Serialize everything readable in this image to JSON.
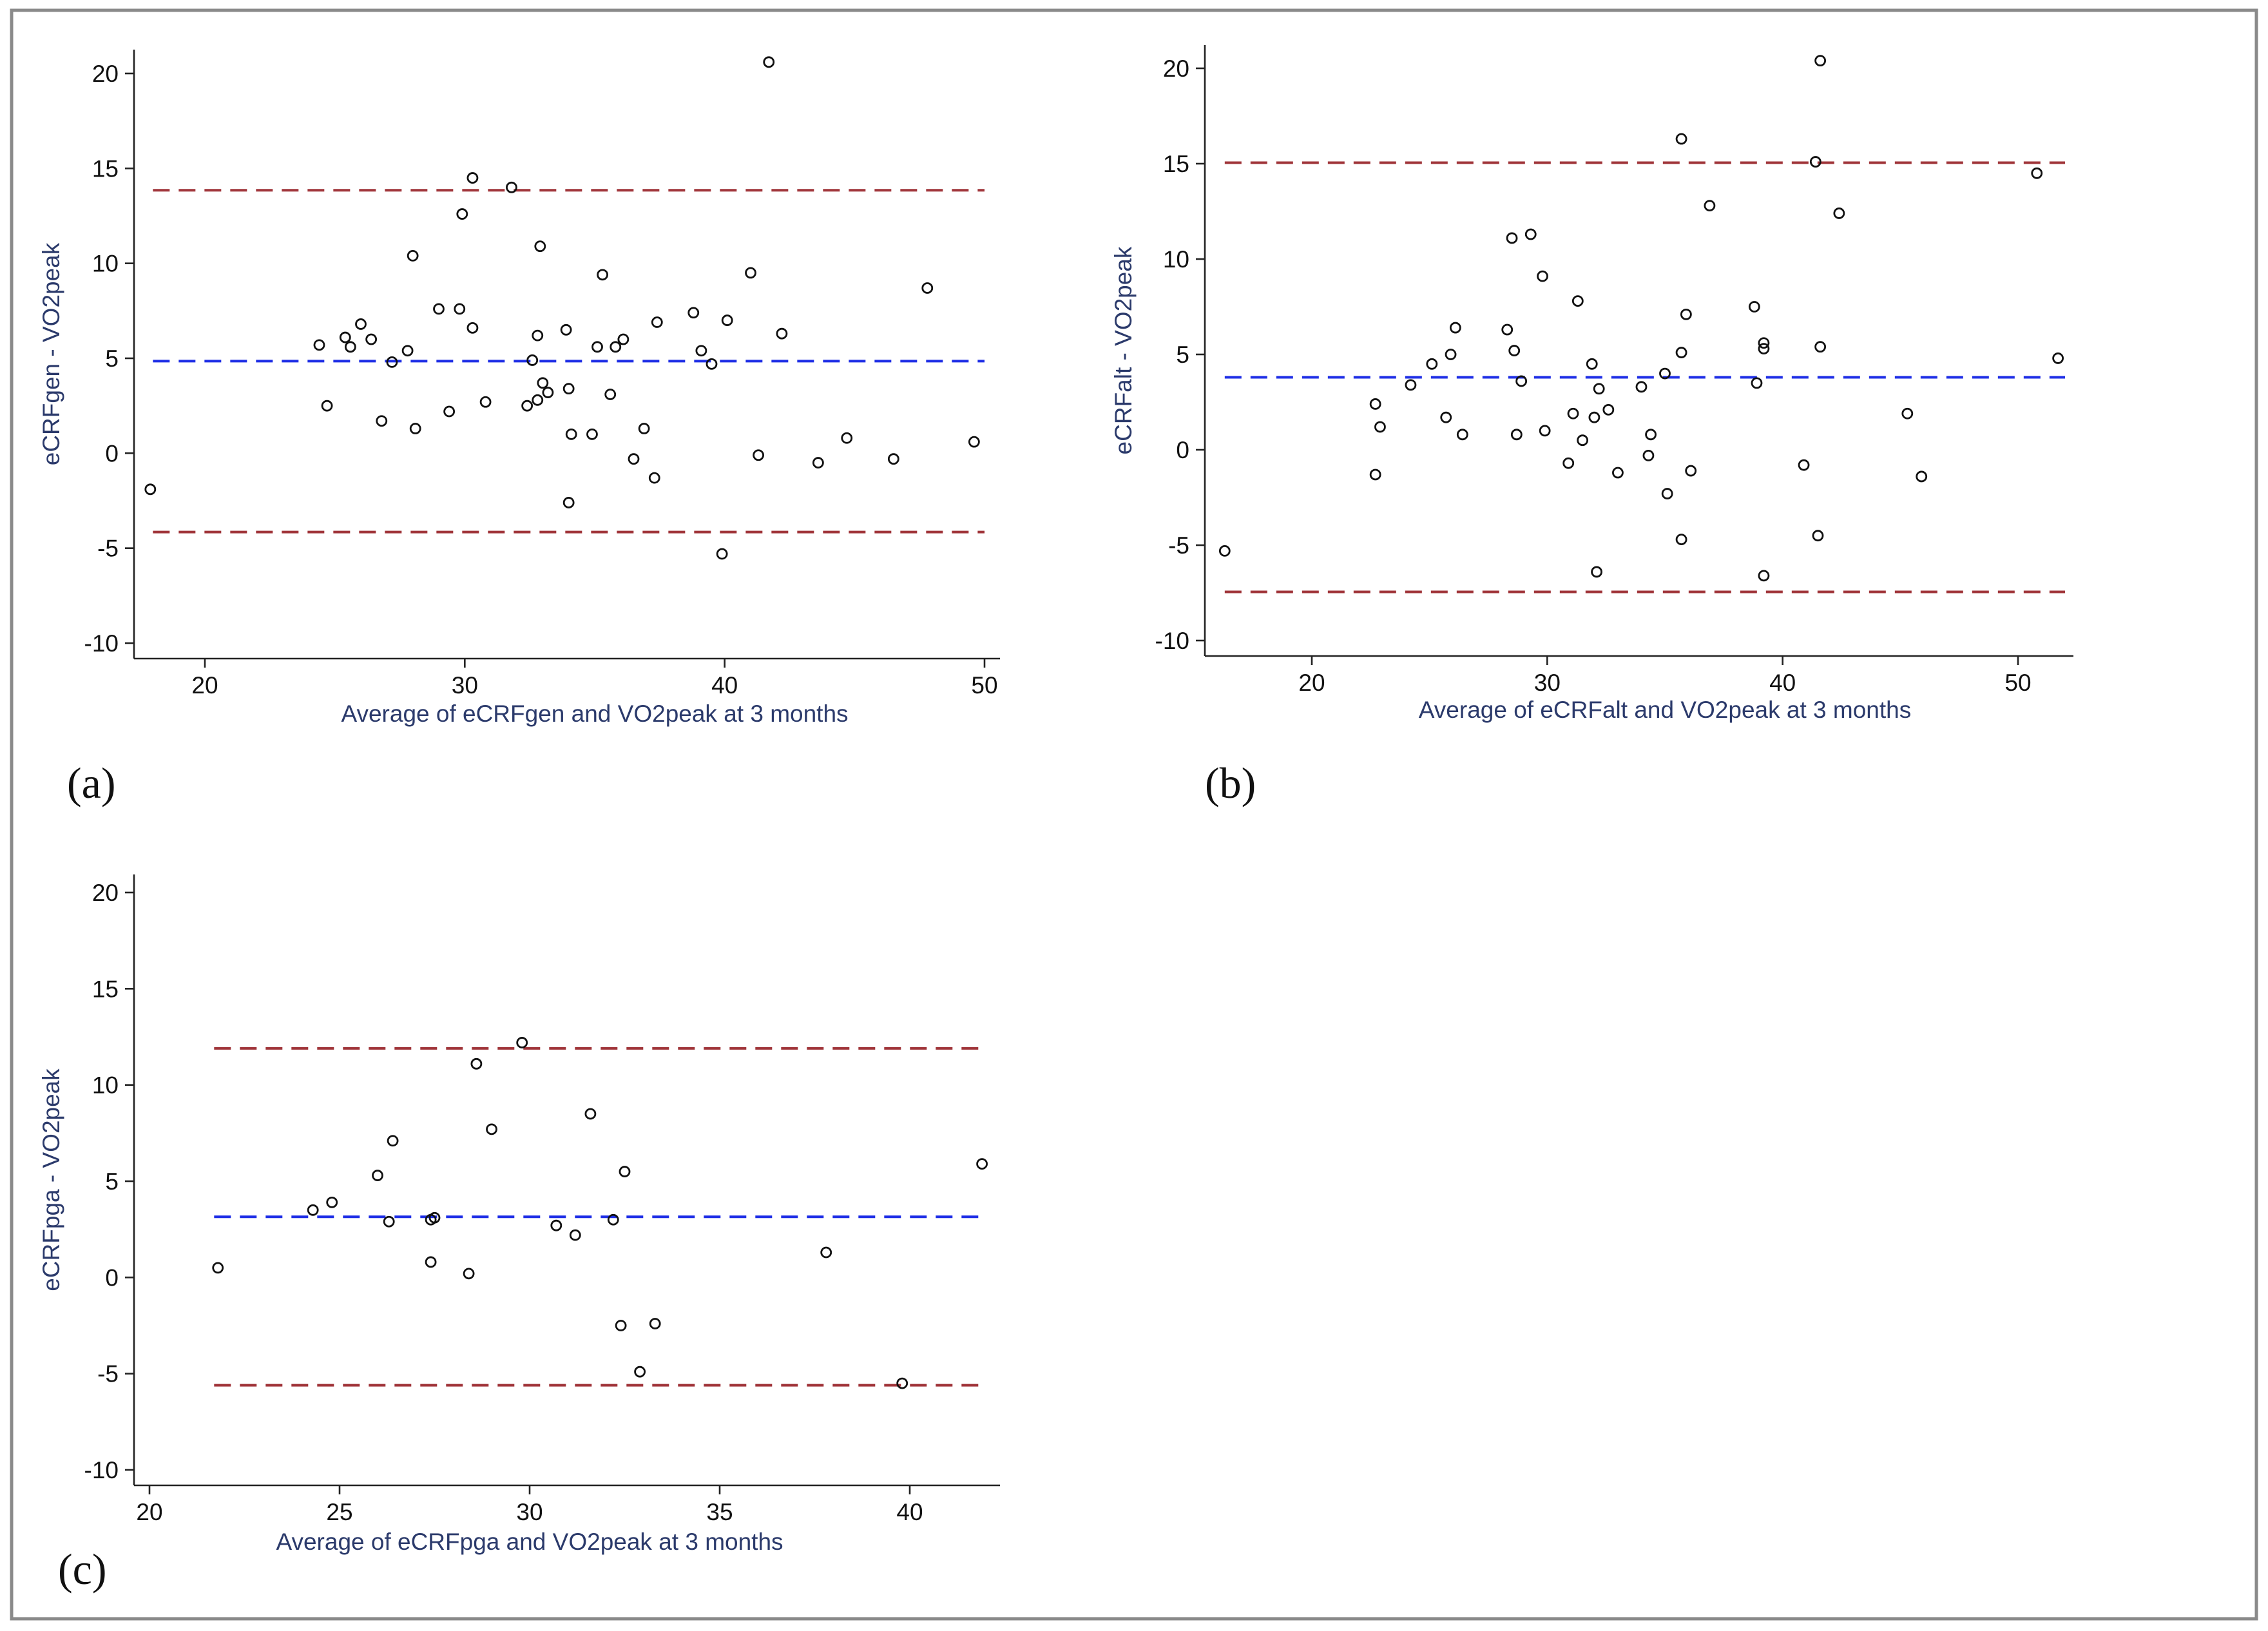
{
  "figure": {
    "colors": {
      "mean_line": "#1f2fe6",
      "loa_line": "#a0353a",
      "points": "#111111",
      "axis_label": "#2b3a6b"
    }
  },
  "chart_data": [
    {
      "id": "a",
      "panel_label": "(a)",
      "type": "scatter",
      "title": "",
      "xlabel": "Average of eCRFgen and VO2peak at 3 months",
      "ylabel": "eCRFgen - VO2peak",
      "xlim": [
        17.5,
        50.5
      ],
      "ylim": [
        -10.8,
        21.5
      ],
      "xticks": [
        20,
        30,
        40,
        50
      ],
      "yticks": [
        -10,
        -5,
        0,
        5,
        10,
        15,
        20
      ],
      "mean": 4.85,
      "upper_loa": 13.85,
      "lower_loa": -4.15,
      "line_extent": [
        18,
        50
      ],
      "points": [
        [
          17.9,
          -1.9
        ],
        [
          24.4,
          5.7
        ],
        [
          24.7,
          2.5
        ],
        [
          25.4,
          6.1
        ],
        [
          25.6,
          5.6
        ],
        [
          26.0,
          6.8
        ],
        [
          26.4,
          6.0
        ],
        [
          26.8,
          1.7
        ],
        [
          27.2,
          4.8
        ],
        [
          27.8,
          5.4
        ],
        [
          28.0,
          10.4
        ],
        [
          28.1,
          1.3
        ],
        [
          29.0,
          7.6
        ],
        [
          29.4,
          2.2
        ],
        [
          29.8,
          7.6
        ],
        [
          29.9,
          12.6
        ],
        [
          30.3,
          6.6
        ],
        [
          30.3,
          14.5
        ],
        [
          30.8,
          2.7
        ],
        [
          31.8,
          14.0
        ],
        [
          32.4,
          2.5
        ],
        [
          32.6,
          4.9
        ],
        [
          32.8,
          2.8
        ],
        [
          32.8,
          6.2
        ],
        [
          32.9,
          10.9
        ],
        [
          33.0,
          3.7
        ],
        [
          33.2,
          3.2
        ],
        [
          33.9,
          6.5
        ],
        [
          34.0,
          3.4
        ],
        [
          34.1,
          1.0
        ],
        [
          34.0,
          -2.6
        ],
        [
          34.9,
          1.0
        ],
        [
          35.1,
          5.6
        ],
        [
          35.3,
          9.4
        ],
        [
          35.6,
          3.1
        ],
        [
          35.8,
          5.6
        ],
        [
          36.1,
          6.0
        ],
        [
          36.5,
          -0.3
        ],
        [
          36.9,
          1.3
        ],
        [
          37.3,
          -1.3
        ],
        [
          37.4,
          6.9
        ],
        [
          38.8,
          7.4
        ],
        [
          39.1,
          5.4
        ],
        [
          39.5,
          4.7
        ],
        [
          39.9,
          -5.3
        ],
        [
          40.1,
          7.0
        ],
        [
          41.0,
          9.5
        ],
        [
          41.3,
          -0.1
        ],
        [
          41.7,
          20.6
        ],
        [
          42.2,
          6.3
        ],
        [
          43.6,
          -0.5
        ],
        [
          44.7,
          0.8
        ],
        [
          46.5,
          -0.3
        ],
        [
          47.8,
          8.7
        ],
        [
          49.6,
          0.6
        ]
      ]
    },
    {
      "id": "b",
      "panel_label": "(b)",
      "type": "scatter",
      "title": "",
      "xlabel": "Average of eCRFalt and VO2peak at 3 months",
      "ylabel": "eCRFalt - VO2peak",
      "xlim": [
        15.5,
        52.5
      ],
      "ylim": [
        -10.8,
        21.5
      ],
      "xticks": [
        20,
        30,
        40,
        50
      ],
      "yticks": [
        -10,
        -5,
        0,
        5,
        10,
        15,
        20
      ],
      "mean": 3.8,
      "upper_loa": 15.05,
      "lower_loa": -7.45,
      "line_extent": [
        16.3,
        52
      ],
      "points": [
        [
          16.3,
          -5.3
        ],
        [
          22.7,
          2.4
        ],
        [
          22.7,
          -1.3
        ],
        [
          22.9,
          1.2
        ],
        [
          24.2,
          3.4
        ],
        [
          25.1,
          4.5
        ],
        [
          25.7,
          1.7
        ],
        [
          25.9,
          5.0
        ],
        [
          26.1,
          6.4
        ],
        [
          26.4,
          0.8
        ],
        [
          28.3,
          6.3
        ],
        [
          28.5,
          11.1
        ],
        [
          28.6,
          5.2
        ],
        [
          28.7,
          0.8
        ],
        [
          28.9,
          3.6
        ],
        [
          29.3,
          11.3
        ],
        [
          29.8,
          9.1
        ],
        [
          29.9,
          1.0
        ],
        [
          30.9,
          -0.7
        ],
        [
          31.1,
          1.9
        ],
        [
          31.3,
          7.8
        ],
        [
          31.5,
          0.5
        ],
        [
          31.9,
          4.5
        ],
        [
          32.0,
          1.7
        ],
        [
          32.1,
          -6.4
        ],
        [
          32.2,
          3.2
        ],
        [
          32.6,
          2.1
        ],
        [
          33.0,
          -1.2
        ],
        [
          34.0,
          3.3
        ],
        [
          34.3,
          -0.3
        ],
        [
          34.4,
          0.8
        ],
        [
          35.0,
          4.0
        ],
        [
          35.1,
          -2.3
        ],
        [
          35.7,
          5.1
        ],
        [
          35.7,
          -4.7
        ],
        [
          35.7,
          16.3
        ],
        [
          35.9,
          7.1
        ],
        [
          36.1,
          -1.1
        ],
        [
          36.9,
          12.8
        ],
        [
          38.8,
          7.5
        ],
        [
          38.9,
          3.5
        ],
        [
          39.2,
          5.6
        ],
        [
          39.2,
          5.3
        ],
        [
          39.2,
          -6.6
        ],
        [
          40.9,
          -0.8
        ],
        [
          41.4,
          15.1
        ],
        [
          41.5,
          -4.5
        ],
        [
          41.6,
          20.4
        ],
        [
          41.6,
          5.4
        ],
        [
          42.4,
          12.4
        ],
        [
          45.3,
          1.9
        ],
        [
          45.9,
          -1.4
        ],
        [
          50.8,
          14.5
        ],
        [
          51.7,
          4.8
        ]
      ]
    },
    {
      "id": "c",
      "panel_label": "(c)",
      "type": "scatter",
      "title": "",
      "xlabel": "Average of eCRFpga and VO2peak at 3 months",
      "ylabel": "eCRFpga - VO2peak",
      "xlim": [
        19.8,
        42.4
      ],
      "ylim": [
        -10.8,
        21.5
      ],
      "xticks": [
        20,
        25,
        30,
        35,
        40
      ],
      "yticks": [
        -10,
        -5,
        0,
        5,
        10,
        15,
        20
      ],
      "mean": 3.15,
      "upper_loa": 11.9,
      "lower_loa": -5.6,
      "line_extent": [
        21.7,
        42
      ],
      "points": [
        [
          21.8,
          0.5
        ],
        [
          24.3,
          3.5
        ],
        [
          24.8,
          3.9
        ],
        [
          26.0,
          5.3
        ],
        [
          26.3,
          2.9
        ],
        [
          26.4,
          7.1
        ],
        [
          27.4,
          3.0
        ],
        [
          27.5,
          3.1
        ],
        [
          27.4,
          0.8
        ],
        [
          28.4,
          0.2
        ],
        [
          28.6,
          11.1
        ],
        [
          29.0,
          7.7
        ],
        [
          29.8,
          12.2
        ],
        [
          30.7,
          2.7
        ],
        [
          31.2,
          2.2
        ],
        [
          31.6,
          8.5
        ],
        [
          32.2,
          3.0
        ],
        [
          32.4,
          -2.5
        ],
        [
          32.5,
          5.5
        ],
        [
          32.9,
          -4.9
        ],
        [
          33.3,
          -2.4
        ],
        [
          37.8,
          1.3
        ],
        [
          39.8,
          -5.5
        ],
        [
          41.9,
          5.9
        ]
      ]
    }
  ]
}
